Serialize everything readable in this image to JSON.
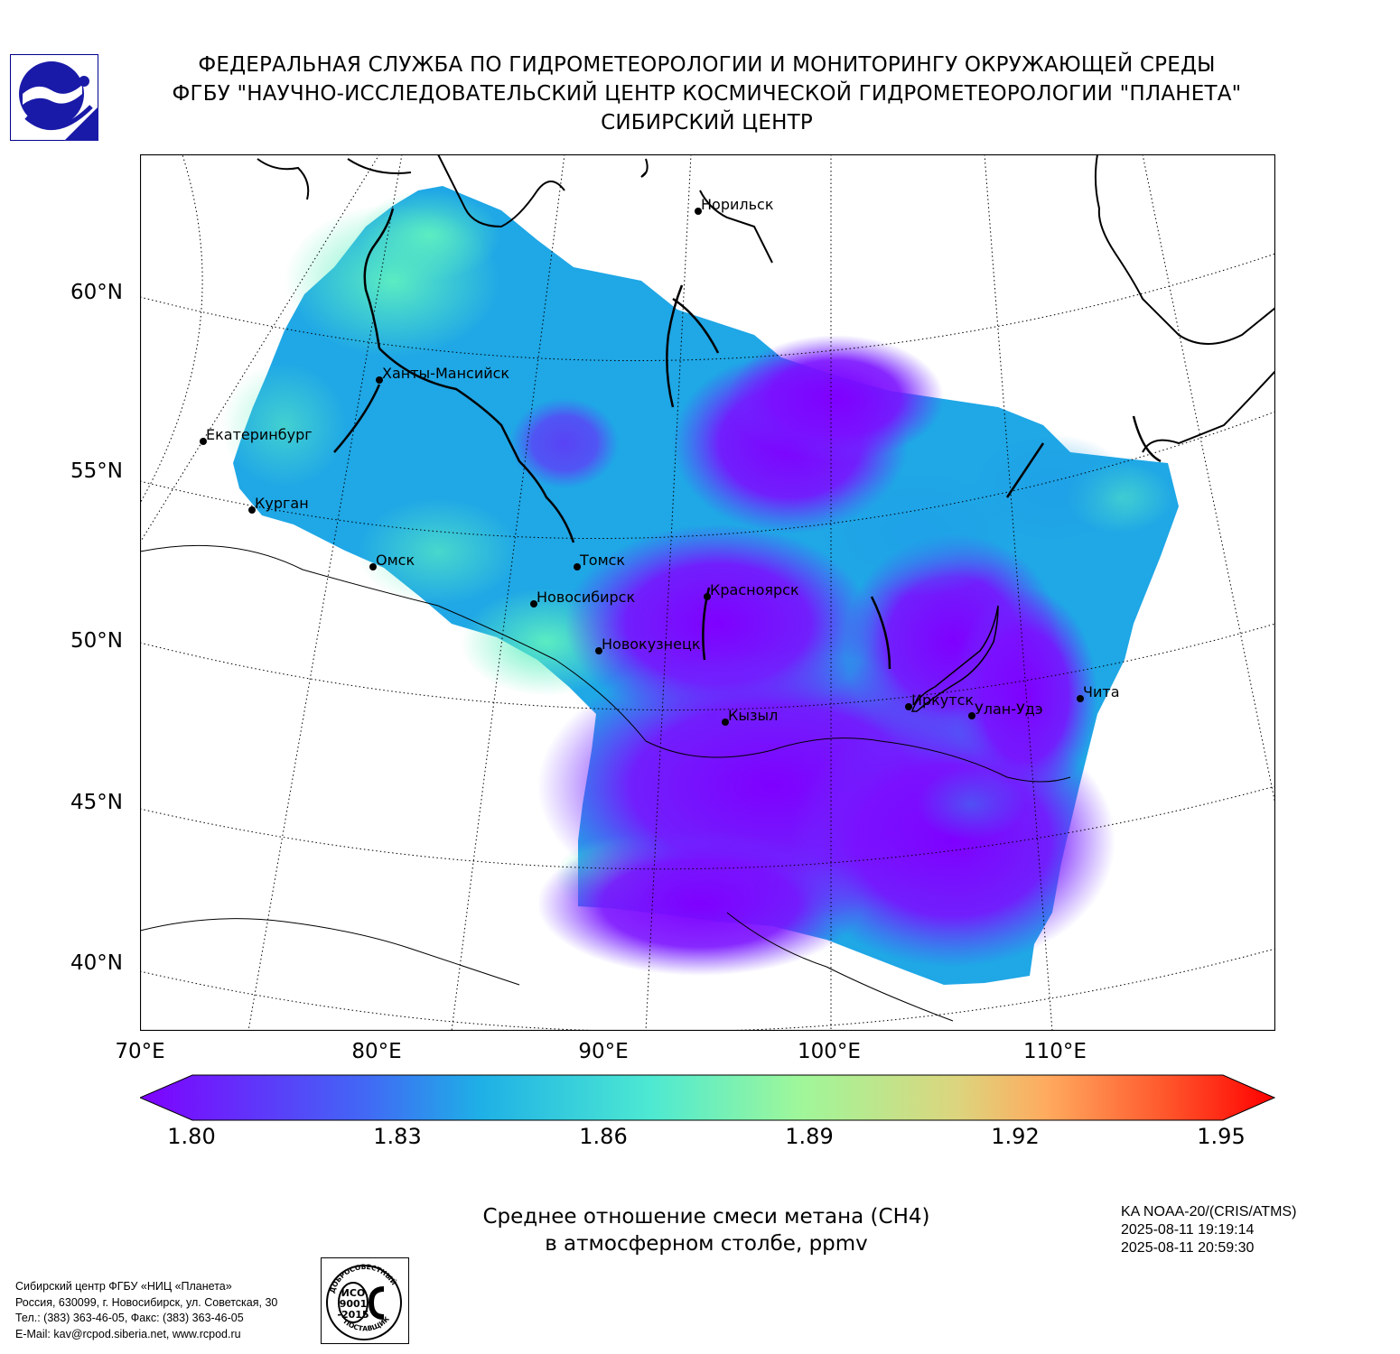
{
  "header": {
    "line1": "ФЕДЕРАЛЬНАЯ СЛУЖБА ПО ГИДРОМЕТЕОРОЛОГИИ И МОНИТОРИНГУ ОКРУЖАЮЩЕЙ СРЕДЫ",
    "line2": "ФГБУ \"НАУЧНО-ИССЛЕДОВАТЕЛЬСКИЙ ЦЕНТР КОСМИЧЕСКОЙ ГИДРОМЕТЕОРОЛОГИИ \"ПЛАНЕТА\"",
    "line3": "СИБИРСКИЙ ЦЕНТР"
  },
  "map": {
    "lat_labels": [
      "60°N",
      "55°N",
      "50°N",
      "45°N",
      "40°N"
    ],
    "lon_labels": [
      "70°E",
      "80°E",
      "90°E",
      "100°E",
      "110°E"
    ],
    "cities": [
      {
        "name": "Норильск"
      },
      {
        "name": "Ханты-Мансийск"
      },
      {
        "name": "Екатеринбург"
      },
      {
        "name": "Курган"
      },
      {
        "name": "Омск"
      },
      {
        "name": "Томск"
      },
      {
        "name": "Новосибирск"
      },
      {
        "name": "Красноярск"
      },
      {
        "name": "Новокузнецк"
      },
      {
        "name": "Кызыл"
      },
      {
        "name": "Иркутск"
      },
      {
        "name": "Улан-Удэ"
      },
      {
        "name": "Чита"
      }
    ],
    "colors": {
      "low": "#7f00ff",
      "mid": "#1fa7e6",
      "high": "#ff0000",
      "coast": "#000000"
    }
  },
  "colorbar": {
    "ticks": [
      "1.80",
      "1.83",
      "1.86",
      "1.89",
      "1.92",
      "1.95"
    ],
    "min": 1.8,
    "max": 1.95,
    "extend": "both"
  },
  "parameter": {
    "line1": "Среднее отношение смеси метана (CH4)",
    "line2": "в атмосферном столбе, ppmv"
  },
  "satellite": {
    "name": "KA NOAA-20/(CRIS/ATMS)",
    "time_start": "2025-08-11 19:19:14",
    "time_end": "2025-08-11 20:59:30"
  },
  "footer": {
    "line1": "Сибирский центр ФГБУ «НИЦ «Планета»",
    "line2": "Россия, 630099, г. Новосибирск, ул. Советская, 30",
    "line3": "Тел.: (383) 363-46-05, Факс: (383) 363-46-05",
    "line4": "E-Mail: kav@rcpod.siberia.net, www.rcpod.ru"
  },
  "iso_badge": {
    "top_text": "ДОБРОСОВЕСТНЫЙ",
    "line1": "ИСО",
    "line2": "9001",
    "line3": "-2015",
    "bottom_text": "ПОСТАВЩИК"
  }
}
